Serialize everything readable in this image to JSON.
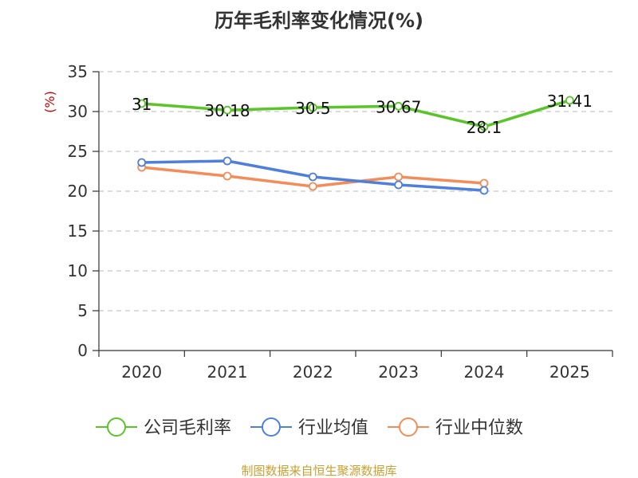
{
  "page": {
    "title": "历年毛利率变化情况(%)",
    "source": "制图数据来自恒生聚源数据库"
  },
  "chart_data": {
    "type": "line",
    "title": "历年毛利率变化情况(%)",
    "ylabel": "(%)",
    "xlabel": "",
    "categories": [
      "2020",
      "2021",
      "2022",
      "2023",
      "2024",
      "2025"
    ],
    "ylim": [
      0,
      35
    ],
    "yticks": [
      0,
      5,
      10,
      15,
      20,
      25,
      30,
      35
    ],
    "grid": true,
    "legend_position": "bottom",
    "series": [
      {
        "name": "公司毛利率",
        "color": "#5bc42a",
        "values": [
          31,
          30.18,
          30.5,
          30.67,
          28.1,
          31.41
        ],
        "labels": [
          "31",
          "30.18",
          "30.5",
          "30.67",
          "28.1",
          "31.41"
        ]
      },
      {
        "name": "行业均值",
        "color": "#4f7fdc",
        "values": [
          23.6,
          23.8,
          21.8,
          20.8,
          20.1,
          null
        ]
      },
      {
        "name": "行业中位数",
        "color": "#f48c5a",
        "values": [
          23.0,
          21.9,
          20.6,
          21.8,
          21.0,
          null
        ]
      }
    ]
  }
}
